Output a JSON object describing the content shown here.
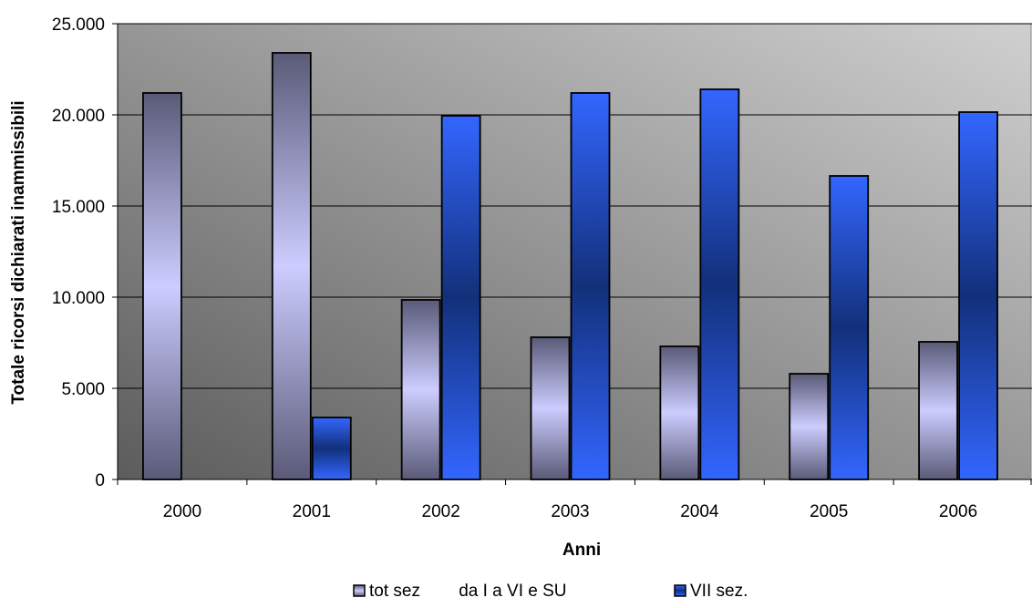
{
  "chart_data": {
    "type": "bar",
    "categories": [
      "2000",
      "2001",
      "2002",
      "2003",
      "2004",
      "2005",
      "2006"
    ],
    "series": [
      {
        "name": "tot sez        da I a VI e SU",
        "values": [
          21200,
          23400,
          9850,
          7800,
          7300,
          5800,
          7550
        ]
      },
      {
        "name": "VII sez.",
        "values": [
          null,
          3400,
          19950,
          21200,
          21400,
          16650,
          20150
        ]
      }
    ],
    "xlabel": "Anni",
    "ylabel": "Totale ricorsi dichiarati inammissibili",
    "ylim": [
      0,
      25000
    ],
    "yticks": [
      0,
      5000,
      10000,
      15000,
      20000,
      25000
    ],
    "ytick_labels": [
      "0",
      "5.000",
      "10.000",
      "15.000",
      "20.000",
      "25.000"
    ],
    "grid": true,
    "legend_position": "bottom",
    "colors": {
      "series1_dark": "#5a5a78",
      "series1_light": "#ccccff",
      "series2_dark": "#12307a",
      "series2_light": "#3366ff",
      "plot_dark": "#5c5c5c",
      "plot_light": "#d0d0d0"
    }
  }
}
